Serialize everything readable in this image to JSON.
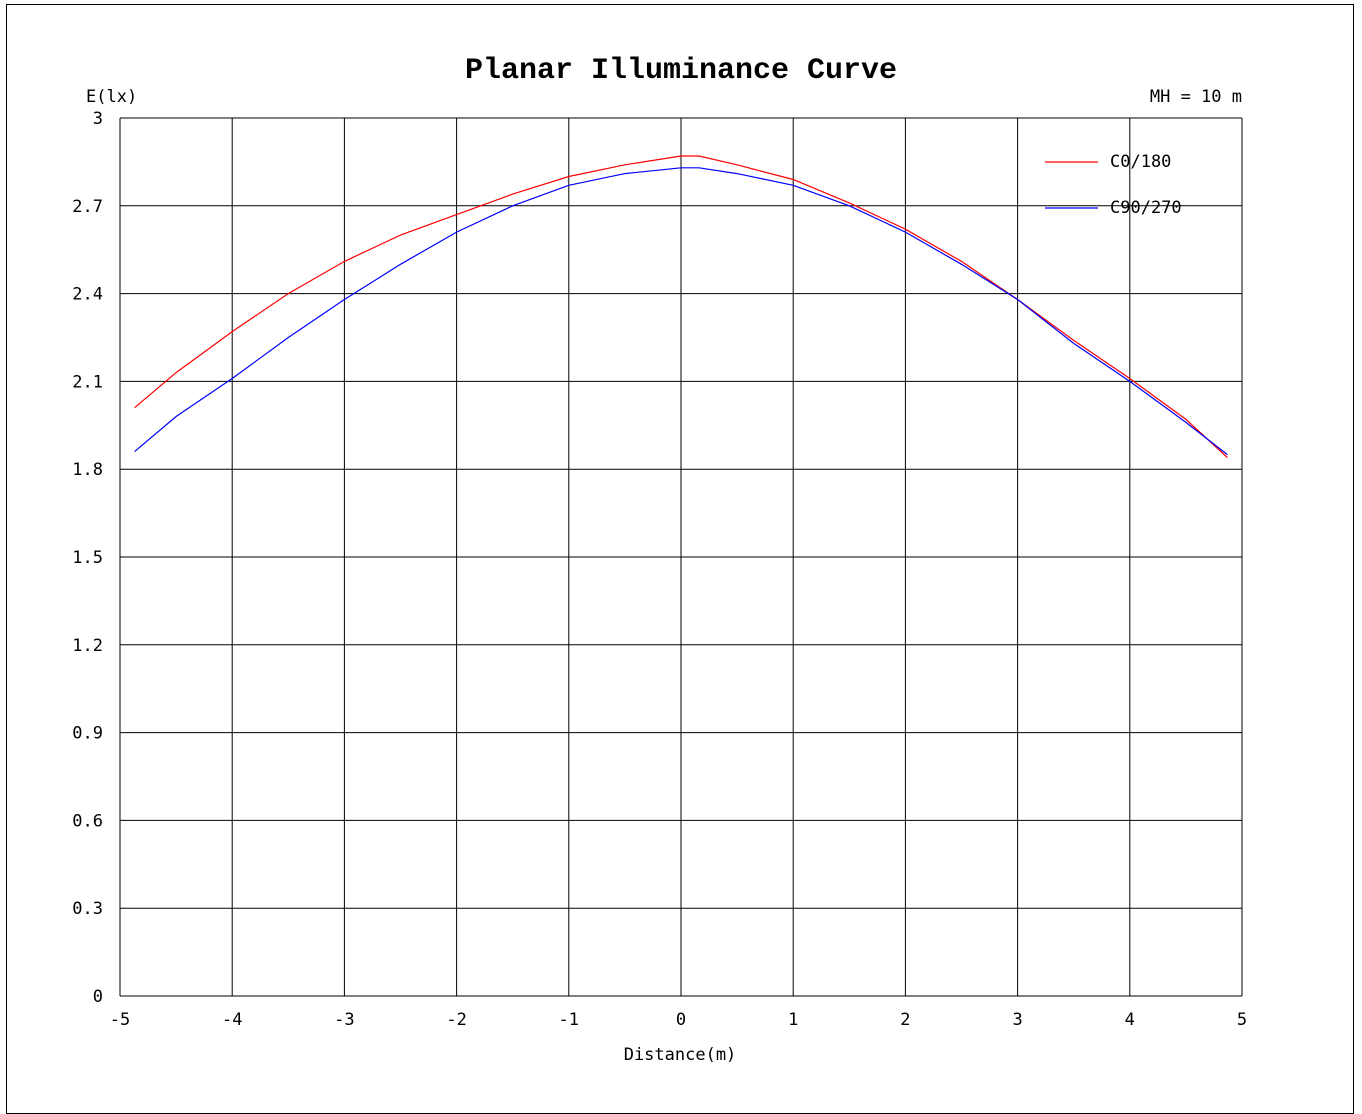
{
  "chart_data": {
    "type": "line",
    "title": "Planar Illuminance Curve",
    "ylabel": "E(lx)",
    "xlabel": "Distance(m)",
    "annotation": "MH = 10 m",
    "xlim": [
      -5,
      5
    ],
    "ylim": [
      0,
      3
    ],
    "x_ticks": [
      "-5",
      "-4",
      "-3",
      "-2",
      "-1",
      "0",
      "1",
      "2",
      "3",
      "4",
      "5"
    ],
    "y_ticks": [
      "0",
      "0.3",
      "0.6",
      "0.9",
      "1.2",
      "1.5",
      "1.8",
      "2.1",
      "2.4",
      "2.7",
      "3"
    ],
    "grid": true,
    "legend_position": "top-right",
    "series": [
      {
        "name": "C0/180",
        "color": "#ff0000",
        "x": [
          -4.87,
          -4.5,
          -4.0,
          -3.5,
          -3.0,
          -2.5,
          -2.0,
          -1.5,
          -1.0,
          -0.5,
          0.0,
          0.16,
          0.5,
          1.0,
          1.5,
          2.0,
          2.5,
          3.0,
          3.5,
          4.0,
          4.5,
          4.87
        ],
        "values": [
          2.01,
          2.13,
          2.27,
          2.4,
          2.51,
          2.6,
          2.67,
          2.74,
          2.8,
          2.84,
          2.87,
          2.87,
          2.84,
          2.79,
          2.71,
          2.62,
          2.51,
          2.38,
          2.24,
          2.11,
          1.97,
          1.84
        ]
      },
      {
        "name": "C90/270",
        "color": "#0000ff",
        "x": [
          -4.87,
          -4.5,
          -4.0,
          -3.5,
          -3.0,
          -2.5,
          -2.0,
          -1.5,
          -1.0,
          -0.5,
          0.0,
          0.16,
          0.5,
          1.0,
          1.5,
          2.0,
          2.5,
          3.0,
          3.5,
          4.0,
          4.5,
          4.87
        ],
        "values": [
          1.86,
          1.98,
          2.11,
          2.25,
          2.38,
          2.5,
          2.61,
          2.7,
          2.77,
          2.81,
          2.83,
          2.83,
          2.81,
          2.77,
          2.7,
          2.61,
          2.5,
          2.38,
          2.23,
          2.1,
          1.96,
          1.85
        ]
      }
    ]
  }
}
